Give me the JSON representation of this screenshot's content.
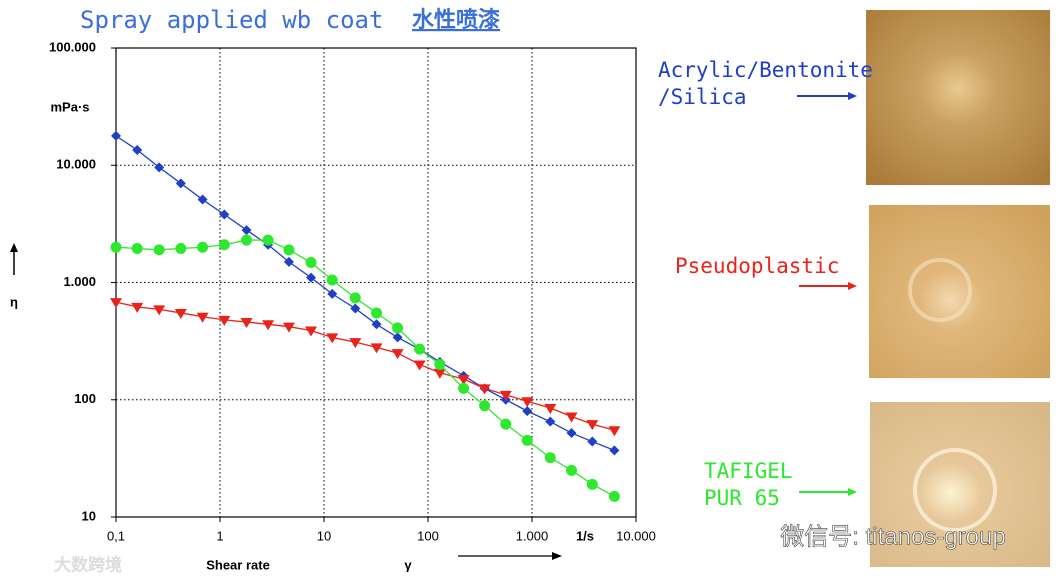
{
  "chart_data": {
    "type": "line",
    "title": "Spray applied wb coat",
    "title_cn": "水性喷漆",
    "y_unit": "mPa·s",
    "y_label": "η",
    "x_label": "Shear rate",
    "x_symbol": "γ",
    "x_unit": "1/s",
    "log_x": true,
    "log_y": true,
    "grid": true,
    "xlim": [
      0.1,
      10000
    ],
    "xticks": [
      {
        "value": 0.1,
        "label": "0,1"
      },
      1,
      10,
      100,
      {
        "value": 1000,
        "label": "1.000"
      },
      {
        "value": 10000,
        "label": "10.000"
      }
    ],
    "ylim": [
      10,
      100000
    ],
    "yticks": [
      10,
      100,
      {
        "value": 1000,
        "label": "1.000"
      },
      {
        "value": 10000,
        "label": "10.000"
      },
      {
        "value": 100000,
        "label": "100.000"
      }
    ],
    "x": [
      0.1,
      0.16,
      0.26,
      0.42,
      0.68,
      1.1,
      1.8,
      2.9,
      4.6,
      7.5,
      12,
      20,
      32,
      51,
      83,
      130,
      220,
      350,
      560,
      900,
      1500,
      2400,
      3800,
      6200
    ],
    "series": [
      {
        "name": "Acrylic/Bentonite /Silica",
        "color": "#1f3fc8",
        "marker": "diamond",
        "values": [
          17800,
          13500,
          9600,
          7000,
          5100,
          3800,
          2800,
          2100,
          1500,
          1100,
          800,
          600,
          440,
          340,
          270,
          210,
          160,
          125,
          100,
          80,
          65,
          52,
          44,
          37
        ]
      },
      {
        "name": "Pseudoplastic",
        "color": "#e8231b",
        "marker": "triangle",
        "values": [
          680,
          620,
          590,
          550,
          510,
          480,
          460,
          440,
          420,
          390,
          340,
          310,
          280,
          250,
          200,
          170,
          150,
          125,
          110,
          97,
          85,
          72,
          62,
          55
        ]
      },
      {
        "name": "TAFIGEL PUR 65",
        "color": "#2ee82e",
        "marker": "circle",
        "values": [
          2000,
          1950,
          1900,
          1950,
          2000,
          2100,
          2300,
          2300,
          1900,
          1480,
          1050,
          740,
          550,
          410,
          270,
          200,
          125,
          89,
          62,
          45,
          32,
          25,
          19,
          15
        ]
      }
    ],
    "watermark": "微信号: titanos-group",
    "corner_mark": "大数跨境"
  }
}
